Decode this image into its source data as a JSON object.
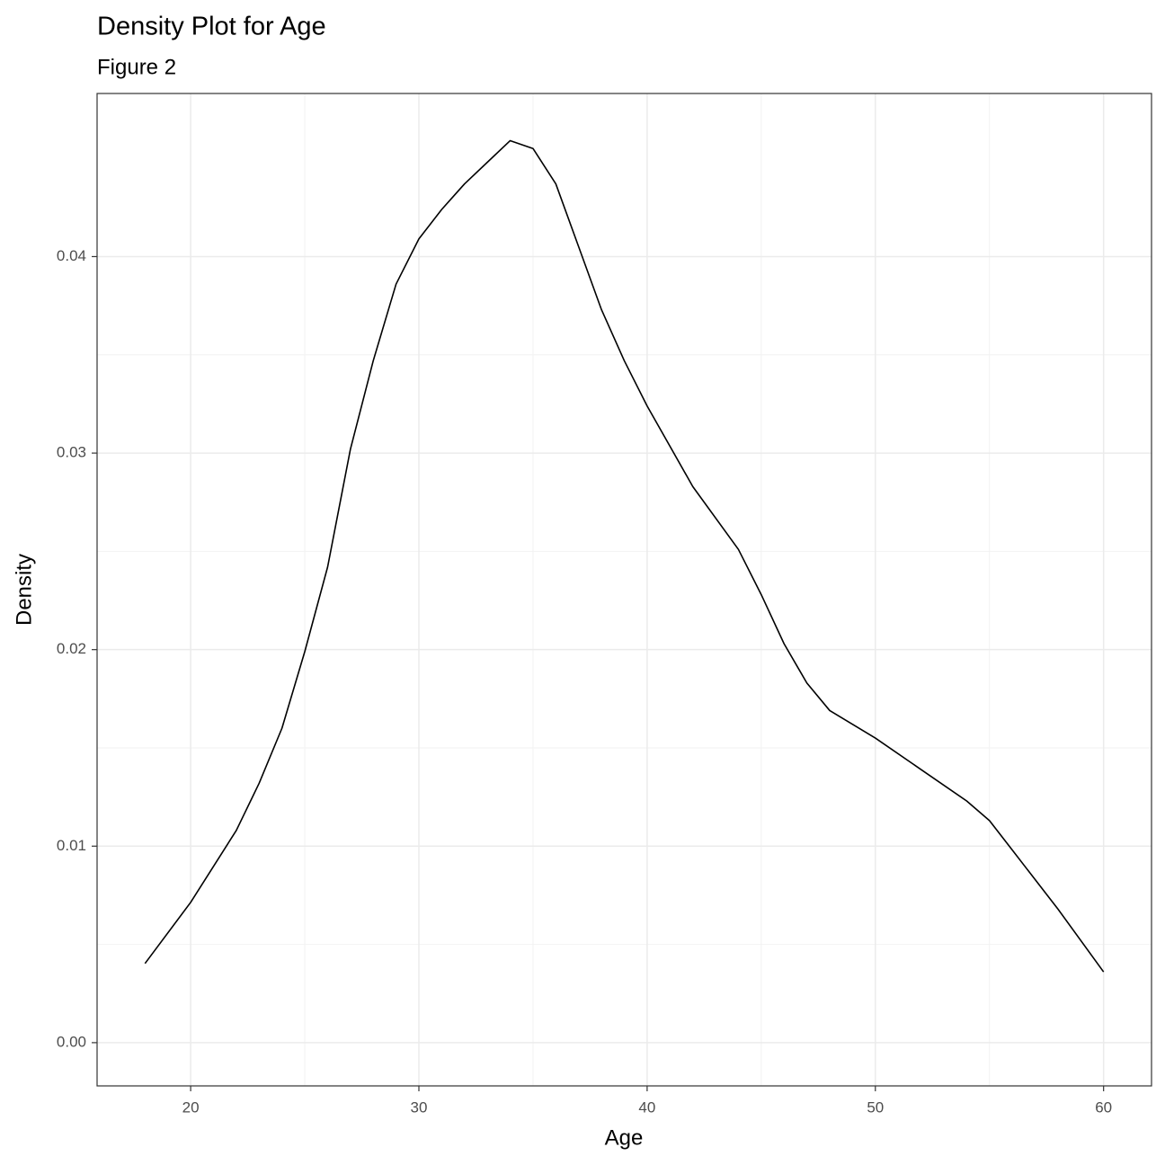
{
  "chart_data": {
    "type": "line",
    "title": "Density Plot for Age",
    "subtitle": "Figure 2",
    "x_label": "Age",
    "y_label": "Density",
    "x": [
      18,
      20,
      22,
      23,
      24,
      25,
      26,
      27,
      28,
      29,
      30,
      31,
      32,
      33,
      34,
      35,
      36,
      37,
      38,
      39,
      40,
      42,
      44,
      45,
      46,
      47,
      48,
      50,
      52,
      54,
      55,
      56,
      58,
      60
    ],
    "series": [
      {
        "color": "#000000",
        "values": [
          0.00403,
          0.00714,
          0.0108,
          0.0132,
          0.016,
          0.0199,
          0.0242,
          0.0302,
          0.0347,
          0.0386,
          0.0409,
          0.0424,
          0.0437,
          0.0448,
          0.0459,
          0.0455,
          0.0437,
          0.0405,
          0.0373,
          0.0347,
          0.0324,
          0.0283,
          0.0251,
          0.0228,
          0.0203,
          0.0183,
          0.0169,
          0.0155,
          0.0139,
          0.0123,
          0.0113,
          0.0098,
          0.0068,
          0.0036
        ]
      }
    ],
    "xlim": [
      15.9,
      62.1
    ],
    "xticks": [
      20,
      30,
      40,
      50,
      60
    ],
    "ylim": [
      -0.0022,
      0.0483
    ],
    "yticks": [
      {
        "value": 0,
        "label": "0.00"
      },
      0.01,
      0.02,
      0.03,
      0.04
    ],
    "grid": true,
    "minor_grid": true
  }
}
